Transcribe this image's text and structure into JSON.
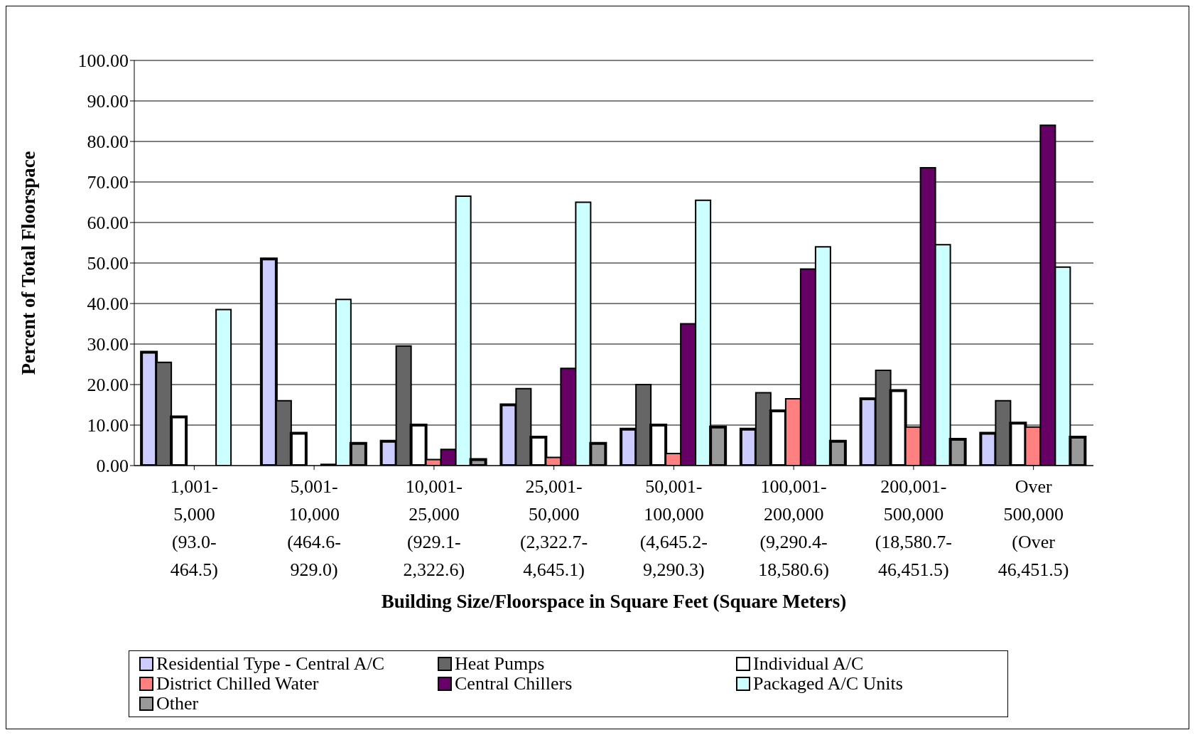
{
  "chart_data": {
    "type": "bar",
    "xlabel": "Building Size/Floorspace in Square Feet (Square Meters)",
    "ylabel": "Percent of Total Floorspace",
    "categories": [
      "1,001-\n5,000\n(93.0-\n464.5)",
      "5,001-\n10,000\n(464.6-\n929.0)",
      "10,001-\n25,000\n(929.1-\n2,322.6)",
      "25,001-\n50,000\n(2,322.7-\n4,645.1)",
      "50,001-\n100,000\n(4,645.2-\n9,290.3)",
      "100,001-\n200,000\n(9,290.4-\n18,580.6)",
      "200,001-\n500,000\n(18,580.7-\n46,451.5)",
      "Over\n500,000\n(Over\n46,451.5)"
    ],
    "series": [
      {
        "name": "Residential Type - Central A/C",
        "color": "#ccccff",
        "values": [
          28,
          51,
          6,
          15,
          9,
          9,
          16.5,
          8
        ]
      },
      {
        "name": "Heat Pumps",
        "color": "#666666",
        "values": [
          25.5,
          16,
          29.5,
          19,
          20,
          18,
          23.5,
          16
        ]
      },
      {
        "name": "Individual A/C",
        "color": "#ffffff",
        "values": [
          12,
          8,
          10,
          7,
          10,
          13.5,
          18.5,
          10.5
        ]
      },
      {
        "name": "District Chilled Water",
        "color": "#ff8080",
        "values": [
          null,
          null,
          1.5,
          2,
          3,
          16.5,
          9.5,
          9.5
        ]
      },
      {
        "name": "Central Chillers",
        "color": "#660066",
        "values": [
          null,
          0.3,
          4,
          24,
          35,
          48.5,
          73.5,
          84
        ]
      },
      {
        "name": "Packaged A/C Units",
        "color": "#ccffff",
        "values": [
          38.5,
          41,
          66.5,
          65,
          65.5,
          54,
          54.5,
          49
        ]
      },
      {
        "name": "Other",
        "color": "#999999",
        "values": [
          null,
          5.5,
          1.5,
          5.5,
          9.5,
          6,
          6.5,
          7
        ]
      }
    ],
    "ylim": [
      0,
      100
    ],
    "yticks": [
      {
        "value": 0,
        "label": "0.00"
      },
      {
        "value": 10,
        "label": "10.00"
      },
      {
        "value": 20,
        "label": "20.00"
      },
      {
        "value": 30,
        "label": "30.00"
      },
      {
        "value": 40,
        "label": "40.00"
      },
      {
        "value": 50,
        "label": "50.00"
      },
      {
        "value": 60,
        "label": "60.00"
      },
      {
        "value": 70,
        "label": "70.00"
      },
      {
        "value": 80,
        "label": "80.00"
      },
      {
        "value": 90,
        "label": "90.00"
      },
      {
        "value": 100,
        "label": "100.00"
      }
    ],
    "grid": "y",
    "legend": "bottom"
  }
}
